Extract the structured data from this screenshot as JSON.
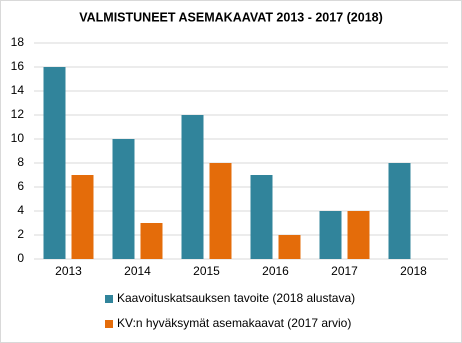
{
  "chart_data": {
    "type": "bar",
    "title": "VALMISTUNEET ASEMAKAAVAT  2013 - 2017 (2018)",
    "categories": [
      "2013",
      "2014",
      "2015",
      "2016",
      "2017",
      "2018"
    ],
    "series": [
      {
        "name": "Kaavoituskatsauksen tavoite (2018 alustava)",
        "color": "#31849b",
        "values": [
          16,
          10,
          12,
          7,
          4,
          8
        ]
      },
      {
        "name": "KV:n hyväksymät asemakaavat (2017 arvio)",
        "color": "#e46c0a",
        "values": [
          7,
          3,
          8,
          2,
          4,
          null
        ]
      }
    ],
    "ylim": [
      0,
      18
    ],
    "yticks": [
      0,
      2,
      4,
      6,
      8,
      10,
      12,
      14,
      16,
      18
    ],
    "grid": true,
    "legend": "bottom"
  }
}
